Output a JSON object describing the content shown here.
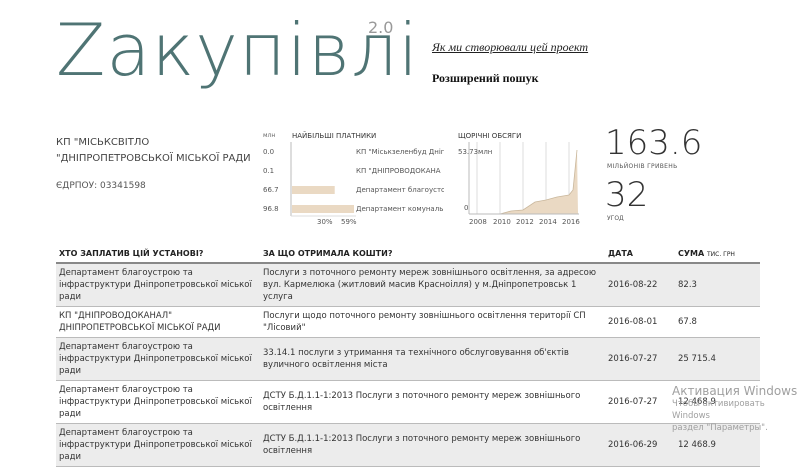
{
  "header": {
    "logo": "Zакупівлі",
    "version": "2.0",
    "about_link": "Як ми створювали цей проект",
    "advanced_search": "Розширений пошук"
  },
  "organization": {
    "name_line1": "КП \"МІСЬКСВІТЛО",
    "name_line2": "\"ДНІПРОПЕТРОВСЬКОЇ МІСЬКОЇ РАДИ",
    "edrpou": "ЄДРПОУ: 03341598"
  },
  "top_payers": {
    "title": "НАЙБІЛЬШІ ПЛАТНИКИ",
    "unit": "млн",
    "values": [
      "0.0",
      "0.1",
      "66.7",
      "96.8"
    ],
    "names": [
      "КП \"Міськзеленбуд Дніп",
      "КП \"ДНІПРОВОДОКАНА",
      "Департамент благоусто",
      "Департамент комунальн"
    ],
    "bar_fraction": [
      0.0,
      0.001,
      0.689,
      1.0
    ],
    "axis_labels": [
      "30%",
      "59%"
    ],
    "bar_color": "#ead9c3"
  },
  "yearly": {
    "title": "ЩОРІЧНІ ОБСЯГИ",
    "max_label": "53.73млн",
    "zero_label": "0",
    "years": [
      "2008",
      "2010",
      "2012",
      "2014",
      "2016"
    ],
    "area_color": "#ead9c3"
  },
  "totals": {
    "amount": "163.6",
    "amount_unit": "МІЛЬЙОНІВ ГРИВЕНЬ",
    "count": "32",
    "count_unit": "УГОД"
  },
  "table": {
    "headers": {
      "payer": "ХТО ЗАПЛАТИВ ЦІЙ УСТАНОВІ?",
      "purpose": "ЗА ЩО ОТРИМАЛА КОШТИ?",
      "date": "ДАТА",
      "sum": "СУМА",
      "sum_unit": "ТИС. ГРН"
    },
    "rows": [
      {
        "payer": "Департамент благоустрою та інфраструктури Дніпропетровської міської ради",
        "purpose": "Послуги з поточного ремонту мереж зовнішнього освітлення, за адресою вул. Кармелюка (житловий масив Красноілля) у м.Дніпропетровськ 1 услуга",
        "date": "2016-08-22",
        "sum": "82.3"
      },
      {
        "payer": "КП \"ДНІПРОВОДОКАНАЛ\" ДНІПРОПЕТРОВСЬКОЇ МІСЬКОЇ РАДИ",
        "purpose": "Послуги щодо поточного ремонту зовнішнього освітлення території СП \"Лісовий\"",
        "date": "2016-08-01",
        "sum": "67.8"
      },
      {
        "payer": "Департамент благоустрою та інфраструктури Дніпропетровської міської ради",
        "purpose": "33.14.1 послуги з утримання та технічного обслуговування об'єктів вуличного освітлення міста",
        "date": "2016-07-27",
        "sum": "25 715.4"
      },
      {
        "payer": "Департамент благоустрою та інфраструктури Дніпропетровської міської ради",
        "purpose": "ДСТУ Б.Д.1.1-1:2013 Послуги з поточного ремонту мереж зовнішнього освітлення",
        "date": "2016-07-27",
        "sum": "12 468.9"
      },
      {
        "payer": "Департамент благоустрою та інфраструктури Дніпропетровської міської ради",
        "purpose": "ДСТУ Б.Д.1.1-1:2013 Послуги з поточного ремонту мереж зовнішнього освітлення",
        "date": "2016-06-29",
        "sum": "12 468.9"
      }
    ]
  },
  "watermark": {
    "title": "Активация Windows",
    "line1": "Чтобы активировать Windows",
    "line2": "раздел \"Параметры\"."
  }
}
